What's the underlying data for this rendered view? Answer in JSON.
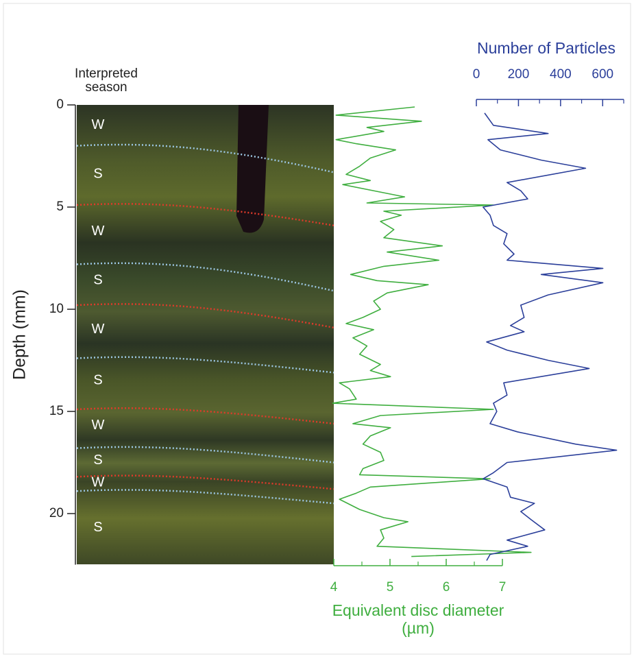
{
  "chart_data": {
    "type": "depth-profile",
    "season_heading": [
      "Interpreted",
      "season"
    ],
    "ylabel": "Depth (mm)",
    "ylim": [
      0,
      22.5
    ],
    "yticks": [
      0,
      5,
      10,
      15,
      20
    ],
    "season_labels": [
      {
        "label": "W",
        "depth": 1
      },
      {
        "label": "S",
        "depth": 3.4
      },
      {
        "label": "W",
        "depth": 6.2
      },
      {
        "label": "S",
        "depth": 8.6
      },
      {
        "label": "W",
        "depth": 11
      },
      {
        "label": "S",
        "depth": 13.5
      },
      {
        "label": "W",
        "depth": 15.7
      },
      {
        "label": "S",
        "depth": 17.4
      },
      {
        "label": "W",
        "depth": 18.5
      },
      {
        "label": "S",
        "depth": 20.7
      }
    ],
    "boundaries": [
      {
        "color": "#9cc6e2",
        "depth": [
          2.0,
          3.3
        ]
      },
      {
        "color": "#e03a2a",
        "depth": [
          4.9,
          5.9
        ]
      },
      {
        "color": "#9cc6e2",
        "depth": [
          7.8,
          9.1
        ]
      },
      {
        "color": "#e03a2a",
        "depth": [
          9.8,
          10.9
        ]
      },
      {
        "color": "#9cc6e2",
        "depth": [
          12.4,
          13.1
        ]
      },
      {
        "color": "#e03a2a",
        "depth": [
          14.9,
          15.6
        ]
      },
      {
        "color": "#9cc6e2",
        "depth": [
          16.8,
          17.5
        ]
      },
      {
        "color": "#e03a2a",
        "depth": [
          18.2,
          18.8
        ]
      },
      {
        "color": "#9cc6e2",
        "depth": [
          18.9,
          19.5
        ]
      }
    ],
    "series": [
      {
        "label": [
          "Equivalent disc diameter",
          "(µm)"
        ],
        "color": "#3fae3f",
        "axis_position": "bottom",
        "xlim": [
          4,
          7
        ],
        "xticks": [
          4,
          5,
          6,
          7
        ],
        "minor_xticks": [
          4.5,
          5.5,
          6.5
        ],
        "depth": [
          0.1,
          0.5,
          0.8,
          1.1,
          1.3,
          1.7,
          1.9,
          2.2,
          2.6,
          3.0,
          3.4,
          3.7,
          3.9,
          4.3,
          4.5,
          4.8,
          4.9,
          5.2,
          5.4,
          5.7,
          6.1,
          6.5,
          6.9,
          7.2,
          7.6,
          7.9,
          8.3,
          8.6,
          8.8,
          9.2,
          9.6,
          10.0,
          10.4,
          10.7,
          11.0,
          11.4,
          11.8,
          12.2,
          12.7,
          13.0,
          13.3,
          13.6,
          13.9,
          14.4,
          14.6,
          14.9,
          15.2,
          15.6,
          15.8,
          16.2,
          16.6,
          17.0,
          17.4,
          17.8,
          18.1,
          18.3,
          18.7,
          19.0,
          19.3,
          19.8,
          20.2,
          20.4,
          20.8,
          21.2,
          21.6,
          21.9,
          22.1
        ],
        "values": [
          5.44,
          4.04,
          5.56,
          4.59,
          4.89,
          4.04,
          4.4,
          5.1,
          4.65,
          4.46,
          4.22,
          4.65,
          4.16,
          4.89,
          5.26,
          4.59,
          6.84,
          4.89,
          5.2,
          4.83,
          5.07,
          4.89,
          5.93,
          4.95,
          5.87,
          4.89,
          4.3,
          4.77,
          5.68,
          4.95,
          4.71,
          4.83,
          4.52,
          4.22,
          4.71,
          4.34,
          4.59,
          4.46,
          4.83,
          4.65,
          5.01,
          4.1,
          4.28,
          4.4,
          3.98,
          6.84,
          4.83,
          4.34,
          5.01,
          4.65,
          4.52,
          4.83,
          4.89,
          4.52,
          4.46,
          6.78,
          4.65,
          4.4,
          4.1,
          4.46,
          4.89,
          5.32,
          4.83,
          4.89,
          4.77,
          7.51,
          5.38
        ]
      },
      {
        "label": [
          "Number of Particles"
        ],
        "color": "#2b3f9a",
        "axis_position": "top",
        "xlim": [
          0,
          700
        ],
        "xticks": [
          0,
          200,
          400,
          600
        ],
        "minor_xticks": [
          100,
          300,
          500,
          700
        ],
        "depth": [
          0.4,
          1.0,
          1.4,
          1.7,
          2.2,
          2.7,
          3.1,
          3.8,
          4.2,
          4.6,
          5.0,
          5.4,
          5.9,
          6.3,
          6.8,
          7.3,
          7.6,
          8.0,
          8.3,
          8.7,
          9.3,
          9.8,
          10.4,
          10.8,
          11.1,
          11.6,
          12.0,
          12.5,
          12.9,
          13.6,
          14.2,
          14.6,
          15.0,
          15.6,
          16.0,
          16.6,
          16.9,
          17.5,
          18.0,
          18.3,
          18.7,
          19.2,
          19.5,
          19.9,
          20.3,
          20.8,
          21.3,
          21.6,
          22.0,
          22.3
        ],
        "values": [
          39,
          81,
          341,
          55,
          114,
          308,
          519,
          146,
          211,
          244,
          32,
          65,
          81,
          146,
          130,
          179,
          146,
          601,
          308,
          601,
          341,
          211,
          227,
          162,
          227,
          49,
          146,
          341,
          536,
          130,
          146,
          81,
          97,
          65,
          195,
          471,
          666,
          146,
          81,
          32,
          146,
          162,
          276,
          211,
          260,
          325,
          146,
          244,
          65,
          49
        ]
      }
    ]
  }
}
